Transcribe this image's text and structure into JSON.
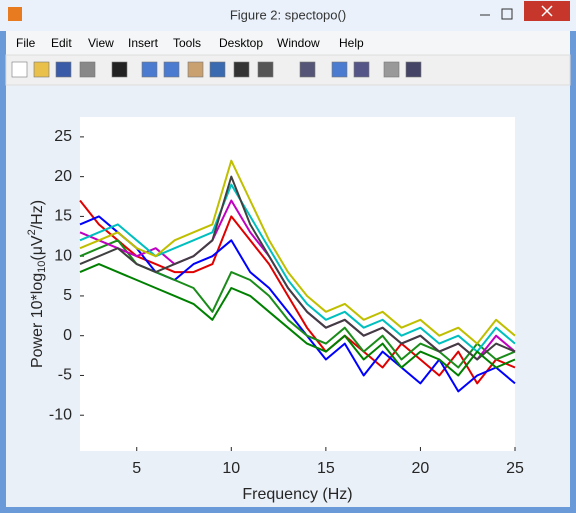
{
  "window": {
    "title": "Figure 2: spectopo()"
  },
  "menu": [
    "File",
    "Edit",
    "View",
    "Insert",
    "Tools",
    "Desktop",
    "Window",
    "Help"
  ],
  "chart_data": {
    "type": "line",
    "xlabel": "Frequency (Hz)",
    "ylabel": {
      "text": "Power 10*log",
      "sub": "10",
      "mid": "(μV",
      "sup": "2",
      "end": "/Hz)"
    },
    "x": [
      2,
      3,
      4,
      5,
      6,
      7,
      8,
      9,
      10,
      11,
      12,
      13,
      14,
      15,
      16,
      17,
      18,
      19,
      20,
      21,
      22,
      23,
      24,
      25
    ],
    "xlim": [
      2,
      25
    ],
    "xticks": [
      5,
      10,
      15,
      20,
      25
    ],
    "ylim": [
      -14.5,
      27.5
    ],
    "yticks": [
      -10,
      -5,
      0,
      5,
      10,
      15,
      20,
      25
    ],
    "series": [
      {
        "color": "#e00000",
        "values": [
          17,
          14,
          12,
          10,
          9,
          8,
          8,
          9,
          15,
          12,
          9,
          5,
          1,
          -2,
          0,
          -2,
          -4,
          -1,
          -3,
          -5,
          -2,
          -6,
          -3,
          -4
        ]
      },
      {
        "color": "#0000ff",
        "values": [
          14,
          15,
          13,
          11,
          8,
          7,
          9,
          10,
          12,
          8,
          6,
          3,
          0,
          -3,
          -1,
          -5,
          -2,
          -4,
          -6,
          -3,
          -7,
          -5,
          -4,
          -6
        ]
      },
      {
        "color": "#1a8c1a",
        "values": [
          10,
          11,
          12,
          9,
          8,
          7,
          6,
          3,
          8,
          7,
          5,
          2,
          0,
          -1,
          1,
          -2,
          0,
          -3,
          -1,
          -2,
          -4,
          -1,
          -3,
          -2
        ]
      },
      {
        "color": "#c000c0",
        "values": [
          13,
          12,
          11,
          10,
          11,
          9,
          10,
          12,
          17,
          13,
          10,
          6,
          3,
          1,
          2,
          0,
          1,
          -1,
          0,
          -2,
          -1,
          -3,
          0,
          -2
        ]
      },
      {
        "color": "#00bfbf",
        "values": [
          12,
          13,
          14,
          12,
          10,
          11,
          12,
          13,
          19,
          15,
          11,
          7,
          4,
          2,
          3,
          1,
          2,
          0,
          1,
          -1,
          0,
          -2,
          1,
          -1
        ]
      },
      {
        "color": "#bfbf00",
        "values": [
          11,
          12,
          13,
          11,
          10,
          12,
          13,
          14,
          22,
          17,
          12,
          8,
          5,
          3,
          4,
          2,
          3,
          1,
          2,
          0,
          1,
          -1,
          2,
          0
        ]
      },
      {
        "color": "#404040",
        "values": [
          9,
          10,
          11,
          9,
          8,
          9,
          10,
          12,
          20,
          14,
          10,
          6,
          3,
          1,
          2,
          0,
          1,
          -1,
          0,
          -2,
          -1,
          -3,
          -1,
          -2
        ]
      },
      {
        "color": "#008000",
        "values": [
          8,
          9,
          8,
          7,
          6,
          5,
          4,
          2,
          6,
          5,
          3,
          1,
          -1,
          -2,
          0,
          -3,
          -1,
          -4,
          -2,
          -3,
          -5,
          -2,
          -4,
          -3
        ]
      }
    ]
  }
}
